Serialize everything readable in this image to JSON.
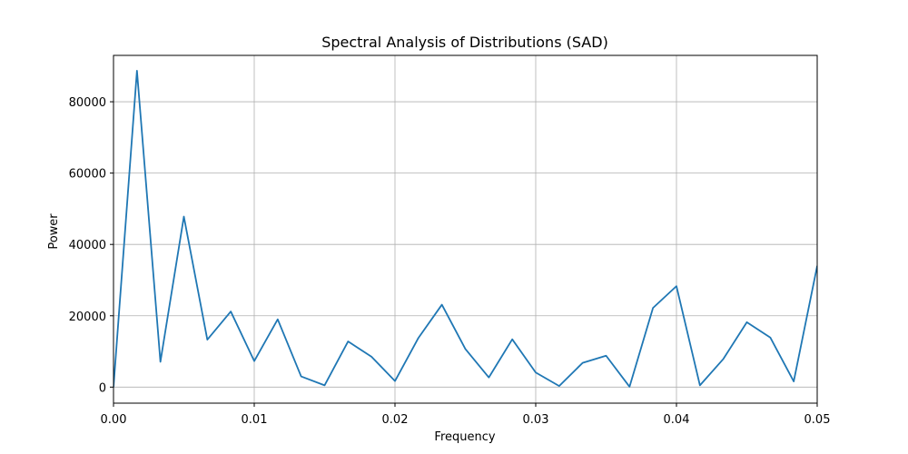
{
  "chart_data": {
    "type": "line",
    "title": "Spectral Analysis of Distributions (SAD)",
    "xlabel": "Frequency",
    "ylabel": "Power",
    "xlim": [
      0.0,
      0.05
    ],
    "ylim": [
      -4500,
      93000
    ],
    "grid": true,
    "legend": "none",
    "x_ticks": [
      0.0,
      0.01,
      0.02,
      0.03,
      0.04,
      0.05
    ],
    "x_tick_labels": [
      "0.00",
      "0.01",
      "0.02",
      "0.03",
      "0.04",
      "0.05"
    ],
    "y_ticks": [
      0,
      20000,
      40000,
      60000,
      80000
    ],
    "y_tick_labels": [
      "0",
      "20000",
      "40000",
      "60000",
      "80000"
    ],
    "series": [
      {
        "color": "#1f77b4",
        "x": [
          0.0,
          0.001667,
          0.003333,
          0.005,
          0.006667,
          0.008333,
          0.01,
          0.011667,
          0.013333,
          0.015,
          0.016667,
          0.018333,
          0.02,
          0.021667,
          0.023333,
          0.025,
          0.026667,
          0.028333,
          0.03,
          0.031667,
          0.033333,
          0.035,
          0.036667,
          0.038333,
          0.04,
          0.041667,
          0.043333,
          0.045,
          0.046667,
          0.048333,
          0.05
        ],
        "y": [
          0,
          88700,
          7100,
          47800,
          13300,
          21200,
          7300,
          19000,
          3000,
          500,
          12800,
          8500,
          1700,
          13800,
          23100,
          10700,
          2700,
          13400,
          4100,
          300,
          6800,
          8800,
          100,
          22200,
          28300,
          500,
          7900,
          18200,
          13900,
          1600,
          34000
        ]
      }
    ]
  }
}
